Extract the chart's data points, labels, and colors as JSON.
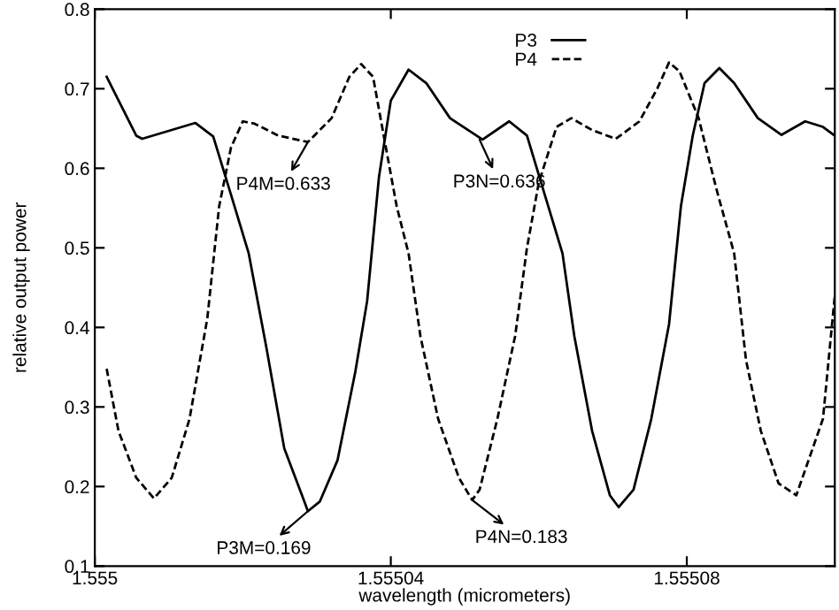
{
  "chart_data": {
    "type": "line",
    "xlabel": "wavelength (micrometers)",
    "ylabel": "relative output power",
    "xlim": [
      1.555,
      1.5551
    ],
    "ylim": [
      0.1,
      0.8
    ],
    "xticks": [
      1.555,
      1.55504,
      1.55508
    ],
    "yticks": [
      0.1,
      0.2,
      0.3,
      0.4,
      0.5,
      0.6,
      0.7,
      0.8
    ],
    "grid": false,
    "legend": "top right",
    "marker": "none",
    "series": [
      {
        "name": "P3",
        "color": "#000000",
        "line_style": "solid",
        "x": [
          1.5550016,
          1.5550056,
          1.5550064,
          1.5550136,
          1.555016,
          1.5550184,
          1.5550208,
          1.5550232,
          1.5550256,
          1.555028,
          1.5550288,
          1.5550304,
          1.5550328,
          1.5550352,
          1.5550368,
          1.5550384,
          1.55504,
          1.5550424,
          1.5550448,
          1.555048,
          1.5550524,
          1.555056,
          1.5550584,
          1.5550608,
          1.5550632,
          1.5550648,
          1.5550672,
          1.5550696,
          1.5550708,
          1.5550728,
          1.5550752,
          1.5550776,
          1.5550792,
          1.5550808,
          1.5550824,
          1.5550844,
          1.5550864,
          1.5550896,
          1.5550928,
          1.555096,
          1.5550984,
          1.5551
        ],
        "values": [
          0.715,
          0.641,
          0.637,
          0.657,
          0.64,
          0.567,
          0.493,
          0.374,
          0.248,
          0.189,
          0.169,
          0.181,
          0.233,
          0.344,
          0.433,
          0.589,
          0.685,
          0.724,
          0.707,
          0.663,
          0.636,
          0.659,
          0.641,
          0.567,
          0.493,
          0.389,
          0.27,
          0.189,
          0.174,
          0.196,
          0.285,
          0.404,
          0.552,
          0.641,
          0.707,
          0.726,
          0.707,
          0.663,
          0.642,
          0.659,
          0.652,
          0.641
        ]
      },
      {
        "name": "P4",
        "color": "#000000",
        "line_style": "dashed",
        "x": [
          1.5550016,
          1.5550032,
          1.5550056,
          1.555008,
          1.5550104,
          1.5550128,
          1.5550152,
          1.5550168,
          1.5550184,
          1.55502,
          1.5550216,
          1.5550248,
          1.5550288,
          1.555032,
          1.5550344,
          1.555036,
          1.5550376,
          1.5550392,
          1.5550408,
          1.5550424,
          1.555044,
          1.5550464,
          1.5550492,
          1.555051,
          1.555052,
          1.5550544,
          1.5550568,
          1.5550584,
          1.55506,
          1.5550624,
          1.5550644,
          1.5550672,
          1.5550704,
          1.5550736,
          1.555076,
          1.5550776,
          1.555079,
          1.5550816,
          1.555084,
          1.5550864,
          1.555088,
          1.55509,
          1.5550924,
          1.5550948,
          1.5550984,
          1.5551
        ],
        "values": [
          0.348,
          0.27,
          0.211,
          0.185,
          0.211,
          0.285,
          0.411,
          0.552,
          0.626,
          0.659,
          0.656,
          0.641,
          0.633,
          0.663,
          0.715,
          0.731,
          0.715,
          0.633,
          0.552,
          0.493,
          0.389,
          0.285,
          0.211,
          0.183,
          0.196,
          0.285,
          0.389,
          0.5,
          0.582,
          0.652,
          0.663,
          0.648,
          0.637,
          0.659,
          0.7,
          0.733,
          0.722,
          0.663,
          0.574,
          0.493,
          0.359,
          0.27,
          0.204,
          0.189,
          0.285,
          0.44
        ]
      }
    ],
    "annotations": [
      {
        "text": "P4M=0.633",
        "x": 1.5550288,
        "y": 0.633
      },
      {
        "text": "P3N=0.636",
        "x": 1.555052,
        "y": 0.636
      },
      {
        "text": "P3M=0.169",
        "x": 1.5550288,
        "y": 0.169
      },
      {
        "text": "P4N=0.183",
        "x": 1.555051,
        "y": 0.183
      }
    ]
  }
}
